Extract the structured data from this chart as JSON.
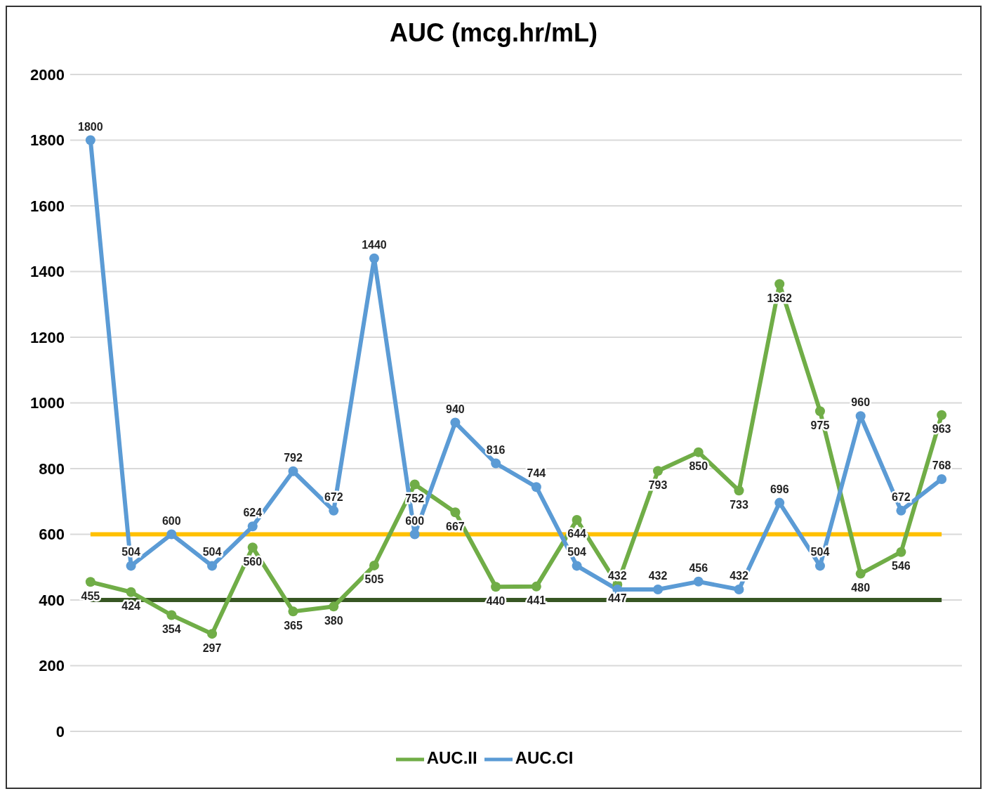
{
  "chart_data": {
    "type": "line",
    "title": "AUC (mcg.hr/mL)",
    "categories": [
      null,
      null,
      null,
      null,
      null,
      null,
      null,
      null,
      null,
      null,
      null,
      null,
      null,
      null,
      null,
      null,
      null,
      null,
      null,
      null,
      null,
      null
    ],
    "series": [
      {
        "name": "AUC.II",
        "color": "#70ad47",
        "values": [
          455,
          424,
          354,
          297,
          560,
          365,
          380,
          505,
          752,
          667,
          440,
          441,
          644,
          447,
          793,
          850,
          733,
          1362,
          975,
          480,
          546,
          963
        ]
      },
      {
        "name": "AUC.CI",
        "color": "#5b9bd5",
        "values": [
          1800,
          504,
          600,
          504,
          624,
          792,
          672,
          1440,
          600,
          940,
          816,
          744,
          504,
          432,
          432,
          456,
          432,
          696,
          504,
          960,
          672,
          768
        ]
      }
    ],
    "ylim": [
      0,
      2000
    ],
    "yticks": [
      0,
      200,
      400,
      600,
      800,
      1000,
      1200,
      1400,
      1600,
      1800,
      2000
    ],
    "ref_lines": [
      {
        "axis": "y",
        "value": 600,
        "color": "#ffc000"
      },
      {
        "axis": "y",
        "value": 400,
        "color": "#375623"
      }
    ],
    "grid": "y",
    "legend": "bottom",
    "marker": "circle",
    "line_style": "solid",
    "data_labels": true
  }
}
